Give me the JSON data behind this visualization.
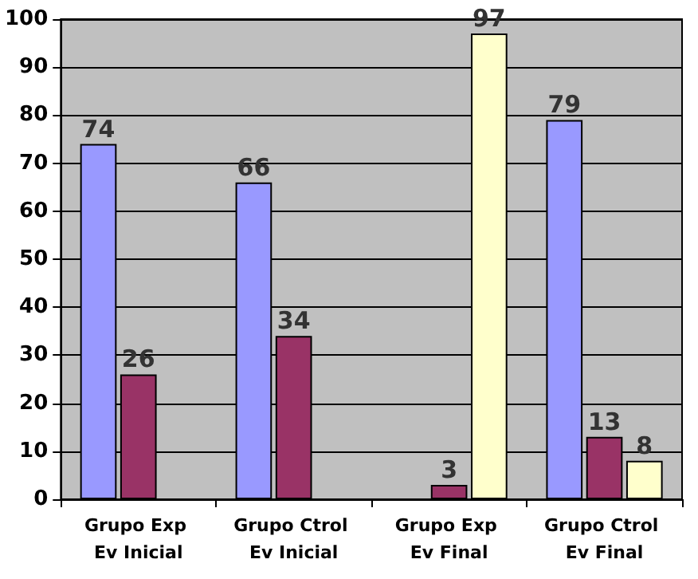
{
  "chart_data": {
    "type": "bar",
    "categories": [
      "Grupo Exp Ev Inicial",
      "Grupo Ctrol Ev Inicial",
      "Grupo Exp Ev Final",
      "Grupo Ctrol Ev Final"
    ],
    "series": [
      {
        "color": "#9999ff",
        "values": [
          74,
          66,
          null,
          79
        ]
      },
      {
        "color": "#993366",
        "values": [
          26,
          34,
          3,
          13
        ]
      },
      {
        "color": "#ffffcc",
        "values": [
          null,
          null,
          97,
          8
        ]
      }
    ],
    "ylim": [
      0,
      100
    ],
    "yticks": [
      0,
      10,
      20,
      30,
      40,
      50,
      60,
      70,
      80,
      90,
      100
    ],
    "grid": "y",
    "data_labels": true
  }
}
